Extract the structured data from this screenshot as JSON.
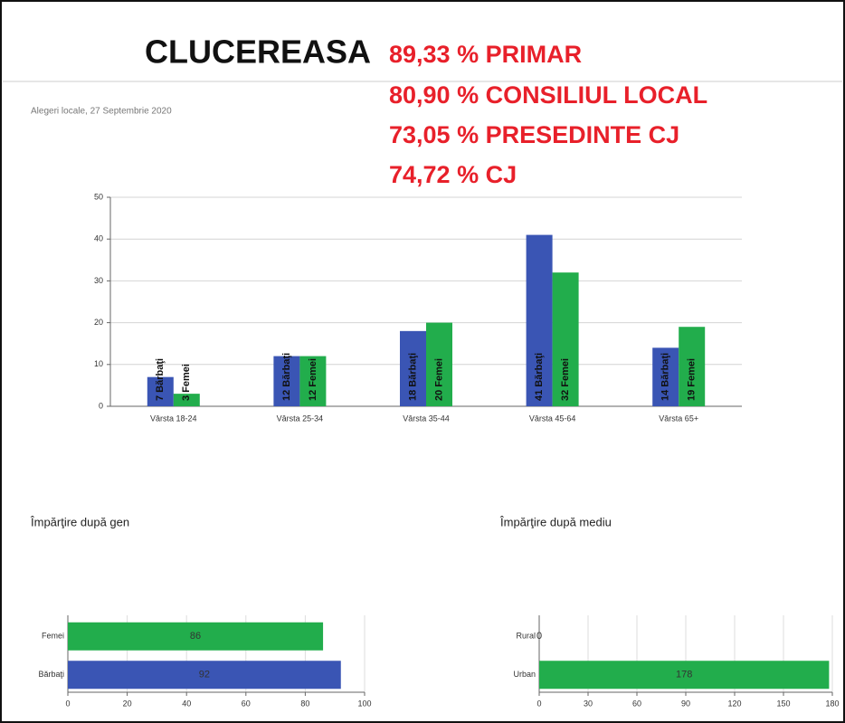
{
  "header": {
    "title": "CLUCEREASA",
    "stats": [
      "89,33 % PRIMAR",
      "80,90 % CONSILIUL LOCAL",
      "73,05 % PRESEDINTE CJ",
      "74,72 % CJ"
    ],
    "subtitle": "Alegeri locale, 27 Septembrie 2020"
  },
  "chart_data": [
    {
      "type": "bar",
      "categories": [
        "Vârsta 18-24",
        "Vârsta 25-34",
        "Vârsta 35-44",
        "Vârsta 45-64",
        "Vârsta 65+"
      ],
      "series": [
        {
          "name": "Bărbaţi",
          "color": "#3a55b4",
          "values": [
            7,
            12,
            18,
            41,
            14
          ],
          "value_labels": [
            "7 Bărbaţi",
            "12 Bărbaţi",
            "18 Bărbaţi",
            "41 Bărbaţi",
            "14 Bărbaţi"
          ]
        },
        {
          "name": "Femei",
          "color": "#22ad4c",
          "values": [
            3,
            12,
            20,
            32,
            19
          ],
          "value_labels": [
            "3 Femei",
            "12 Femei",
            "20 Femei",
            "32 Femei",
            "19 Femei"
          ]
        }
      ],
      "ylim": [
        0,
        50
      ],
      "yticks": [
        0,
        10,
        20,
        30,
        40,
        50
      ],
      "grid": true
    },
    {
      "type": "barh",
      "title": "Împărţire după gen",
      "categories": [
        "Femei",
        "Bărbaţi"
      ],
      "values": [
        86,
        92
      ],
      "colors": [
        "#22ad4c",
        "#3a55b4"
      ],
      "xlim": [
        0,
        100
      ],
      "xticks": [
        0,
        20,
        40,
        60,
        80,
        100
      ],
      "grid": true
    },
    {
      "type": "barh",
      "title": "Împărţire după mediu",
      "categories": [
        "Rural",
        "Urban"
      ],
      "values": [
        0,
        178
      ],
      "colors": [
        "#22ad4c",
        "#22ad4c"
      ],
      "xlim": [
        0,
        180
      ],
      "xticks": [
        0,
        30,
        60,
        90,
        120,
        150,
        180
      ],
      "grid": true
    }
  ]
}
